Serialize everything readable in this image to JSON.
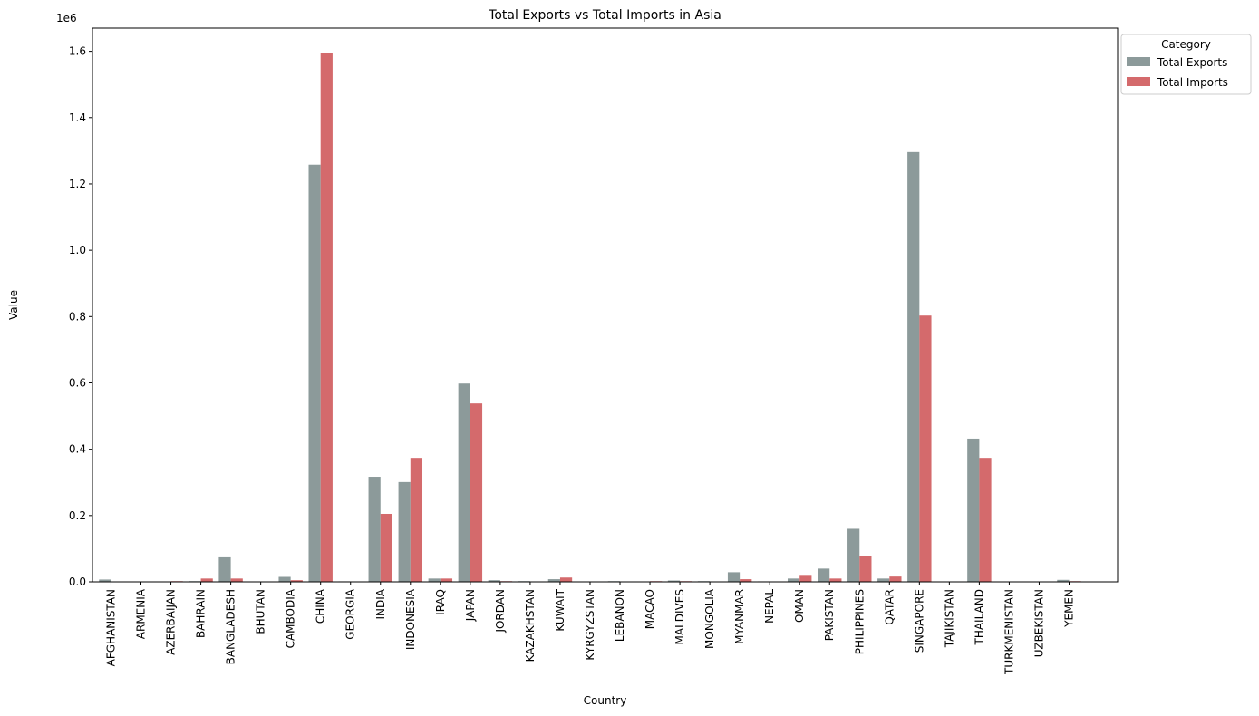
{
  "chart_data": {
    "type": "bar",
    "title": "Total Exports vs Total Imports in Asia",
    "xlabel": "Country",
    "ylabel": "Value",
    "y_offset_label": "1e6",
    "ylim": [
      0,
      1.67
    ],
    "yticks": [
      "0.0",
      "0.2",
      "0.4",
      "0.6",
      "0.8",
      "1.0",
      "1.2",
      "1.4",
      "1.6"
    ],
    "y_unit_scale": 1000000,
    "categories": [
      "AFGHANISTAN",
      "ARMENIA",
      "AZERBAIJAN",
      "BAHRAIN",
      "BANGLADESH",
      "BHUTAN",
      "CAMBODIA",
      "CHINA",
      "GEORGIA",
      "INDIA",
      "INDONESIA",
      "IRAQ",
      "JAPAN",
      "JORDAN",
      "KAZAKHSTAN",
      "KUWAIT",
      "KYRGYZSTAN",
      "LEBANON",
      "MACAO",
      "MALDIVES",
      "MONGOLIA",
      "MYANMAR",
      "NEPAL",
      "OMAN",
      "PAKISTAN",
      "PHILIPPINES",
      "QATAR",
      "SINGAPORE",
      "TAJIKISTAN",
      "THAILAND",
      "TURKMENISTAN",
      "UZBEKISTAN",
      "YEMEN"
    ],
    "series": [
      {
        "name": "Total Exports",
        "color": "#8c9a9a",
        "values": [
          7000,
          500,
          1000,
          2000,
          74000,
          200,
          15000,
          1258000,
          1500,
          317000,
          301000,
          10000,
          598000,
          5000,
          2000,
          8000,
          500,
          2000,
          1000,
          4000,
          2000,
          29000,
          1500,
          10000,
          40000,
          160000,
          10000,
          1296000,
          500,
          432000,
          500,
          1000,
          6000
        ]
      },
      {
        "name": "Total Imports",
        "color": "#d46a6c",
        "values": [
          500,
          500,
          2000,
          10000,
          10000,
          200,
          5000,
          1595000,
          1000,
          205000,
          374000,
          10000,
          538000,
          2000,
          1000,
          13000,
          500,
          1000,
          2000,
          2000,
          1000,
          8000,
          1000,
          21000,
          10000,
          77000,
          16000,
          803000,
          500,
          374000,
          500,
          1000,
          2000
        ]
      }
    ],
    "legend": {
      "title": "Category",
      "position": "outside-top-right"
    }
  }
}
